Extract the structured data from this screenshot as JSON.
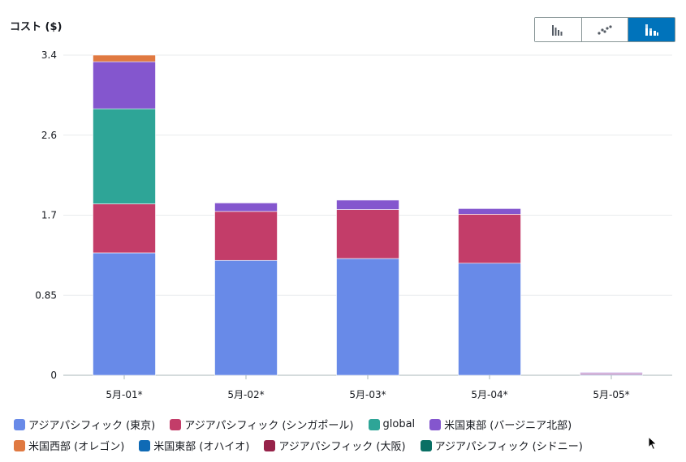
{
  "colors": {
    "tokyo": "#688ae8",
    "singapore": "#c33d69",
    "global": "#2ea597",
    "us_east_virginia": "#8456ce",
    "us_west_oregon": "#e07941",
    "us_east_ohio": "#0f6ab5",
    "osaka": "#962249",
    "sydney": "#096f64",
    "toggle_active": "#0073bb",
    "grid": "#e9ebed",
    "axis": "#aab7b8"
  },
  "view_toggle": {
    "options": [
      "bar-chart-icon",
      "scatter-chart-icon",
      "stacked-bar-chart-icon"
    ],
    "selected": "stacked-bar-chart-icon"
  },
  "legend": [
    {
      "label": "アジアパシフィック (東京)",
      "color": "#688ae8"
    },
    {
      "label": "アジアパシフィック (シンガポール)",
      "color": "#c33d69"
    },
    {
      "label": "global",
      "color": "#2ea597"
    },
    {
      "label": "米国東部 (バージニア北部)",
      "color": "#8456ce"
    },
    {
      "label": "米国西部 (オレゴン)",
      "color": "#e07941"
    },
    {
      "label": "米国東部 (オハイオ)",
      "color": "#0f6ab5"
    },
    {
      "label": "アジアパシフィック (大阪)",
      "color": "#962249"
    },
    {
      "label": "アジアパシフィック (シドニー)",
      "color": "#096f64"
    }
  ],
  "chart_data": {
    "type": "bar",
    "stacked": true,
    "ylabel": "コスト ($)",
    "xlabel": "",
    "ylim": [
      0,
      3.4
    ],
    "yticks": [
      "0",
      "0.85",
      "1.7",
      "2.6",
      "3.4"
    ],
    "ytick_values": [
      0,
      0.85,
      1.7,
      2.55,
      3.4
    ],
    "grid": true,
    "legend_position": "bottom",
    "categories": [
      "5月-01*",
      "5月-02*",
      "5月-03*",
      "5月-04*",
      "5月-05*"
    ],
    "series": [
      {
        "name": "アジアパシフィック (東京)",
        "color": "#688ae8",
        "values": [
          1.3,
          1.22,
          1.24,
          1.19,
          0.01
        ]
      },
      {
        "name": "アジアパシフィック (シンガポール)",
        "color": "#c33d69",
        "values": [
          0.52,
          0.52,
          0.52,
          0.52,
          0.01
        ]
      },
      {
        "name": "global",
        "color": "#2ea597",
        "values": [
          1.01,
          0,
          0,
          0,
          0
        ]
      },
      {
        "name": "米国東部 (バージニア北部)",
        "color": "#8456ce",
        "values": [
          0.5,
          0.09,
          0.1,
          0.06,
          0.01
        ]
      },
      {
        "name": "米国西部 (オレゴン)",
        "color": "#e07941",
        "values": [
          0.07,
          0,
          0,
          0,
          0
        ]
      },
      {
        "name": "米国東部 (オハイオ)",
        "color": "#0f6ab5",
        "values": [
          0,
          0,
          0,
          0,
          0
        ]
      },
      {
        "name": "アジアパシフィック (大阪)",
        "color": "#962249",
        "values": [
          0,
          0,
          0,
          0,
          0
        ]
      },
      {
        "name": "アジアパシフィック (シドニー)",
        "color": "#096f64",
        "values": [
          0,
          0,
          0,
          0,
          0
        ]
      }
    ]
  }
}
